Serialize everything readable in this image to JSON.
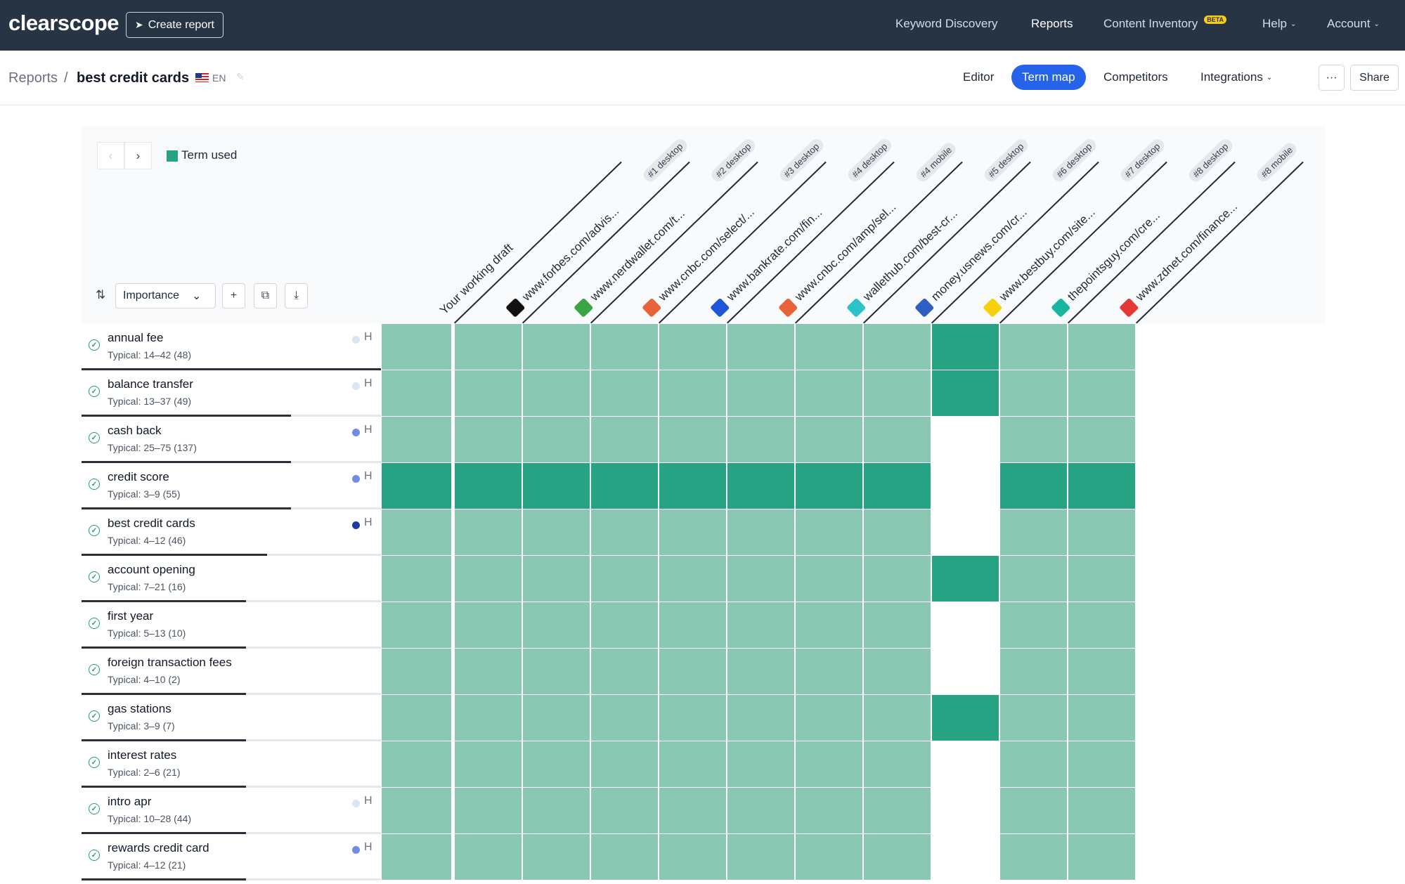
{
  "brand": "clearscope",
  "create_report": "Create report",
  "nav": [
    {
      "label": "Keyword Discovery",
      "active": false
    },
    {
      "label": "Reports",
      "active": true
    },
    {
      "label": "Content Inventory",
      "active": false,
      "badge": "BETA"
    },
    {
      "label": "Help",
      "active": false,
      "dropdown": true
    },
    {
      "label": "Account",
      "active": false,
      "dropdown": true
    }
  ],
  "breadcrumb": {
    "root": "Reports",
    "separator": "/",
    "title": "best credit cards",
    "lang": "EN"
  },
  "tabs": [
    {
      "label": "Editor",
      "active": false
    },
    {
      "label": "Term map",
      "active": true
    },
    {
      "label": "Competitors",
      "active": false
    },
    {
      "label": "Integrations",
      "active": false,
      "dropdown": true
    }
  ],
  "more_label": "···",
  "share_label": "Share",
  "legend": {
    "label": "Term used",
    "color": "#26a383"
  },
  "sort": {
    "label": "Importance"
  },
  "columns": [
    {
      "label": "Your working draft",
      "badge": "",
      "icon": "none"
    },
    {
      "label": "www.forbes.com/advis...",
      "badge": "#1 desktop",
      "icon": "forbes-icon",
      "color": "#111111"
    },
    {
      "label": "www.nerdwallet.com/t...",
      "badge": "#2 desktop",
      "icon": "nerdwallet-icon",
      "color": "#3aa545"
    },
    {
      "label": "www.cnbc.com/select/...",
      "badge": "#3 desktop",
      "icon": "cnbc-icon",
      "color": "#e8633a"
    },
    {
      "label": "www.bankrate.com/fin...",
      "badge": "#4 desktop",
      "icon": "bankrate-icon",
      "color": "#1f56d8"
    },
    {
      "label": "www.cnbc.com/amp/sel...",
      "badge": "#4 mobile",
      "icon": "cnbc-icon",
      "color": "#e8633a"
    },
    {
      "label": "wallethub.com/best-cr...",
      "badge": "#5 desktop",
      "icon": "wallethub-icon",
      "color": "#2cc3c8"
    },
    {
      "label": "money.usnews.com/cr...",
      "badge": "#6 desktop",
      "icon": "usnews-icon",
      "color": "#2f5fc6"
    },
    {
      "label": "www.bestbuy.com/site...",
      "badge": "#7 desktop",
      "icon": "bestbuy-icon",
      "color": "#f5d10c"
    },
    {
      "label": "thepointsguy.com/cre...",
      "badge": "#8 desktop",
      "icon": "thepointsguy-icon",
      "color": "#16b7a0"
    },
    {
      "label": "www.zdnet.com/finance...",
      "badge": "#8 mobile",
      "icon": "zdnet-icon",
      "color": "#e53935"
    }
  ],
  "terms": [
    {
      "name": "annual fee",
      "typical": "Typical: 14–42 (48)",
      "dot": "#dbe4f3",
      "h": "H",
      "bar": 1.0,
      "cells": [
        "lite",
        "lite",
        "lite",
        "lite",
        "lite",
        "lite",
        "lite",
        "lite",
        "dark",
        "lite",
        "lite"
      ]
    },
    {
      "name": "balance transfer",
      "typical": "Typical: 13–37 (49)",
      "dot": "#dbe4f3",
      "h": "H",
      "bar": 0.7,
      "cells": [
        "lite",
        "lite",
        "lite",
        "lite",
        "lite",
        "lite",
        "lite",
        "lite",
        "dark",
        "lite",
        "lite"
      ]
    },
    {
      "name": "cash back",
      "typical": "Typical: 25–75 (137)",
      "dot": "#6c8fe0",
      "h": "H",
      "bar": 0.7,
      "cells": [
        "lite",
        "lite",
        "lite",
        "lite",
        "lite",
        "lite",
        "lite",
        "lite",
        "empty",
        "lite",
        "lite"
      ]
    },
    {
      "name": "credit score",
      "typical": "Typical: 3–9 (55)",
      "dot": "#6c8fe0",
      "h": "H",
      "bar": 0.7,
      "cells": [
        "dark",
        "dark",
        "dark",
        "dark",
        "dark",
        "dark",
        "dark",
        "dark",
        "empty",
        "dark",
        "dark"
      ]
    },
    {
      "name": "best credit cards",
      "typical": "Typical: 4–12 (46)",
      "dot": "#1e3a9f",
      "h": "H",
      "bar": 0.62,
      "cells": [
        "lite",
        "lite",
        "lite",
        "lite",
        "lite",
        "lite",
        "lite",
        "lite",
        "empty",
        "lite",
        "lite"
      ]
    },
    {
      "name": "account opening",
      "typical": "Typical: 7–21 (16)",
      "dot": "",
      "h": "",
      "bar": 0.55,
      "cells": [
        "lite",
        "lite",
        "lite",
        "lite",
        "lite",
        "lite",
        "lite",
        "lite",
        "dark",
        "lite",
        "lite"
      ]
    },
    {
      "name": "first year",
      "typical": "Typical: 5–13 (10)",
      "dot": "",
      "h": "",
      "bar": 0.55,
      "cells": [
        "lite",
        "lite",
        "lite",
        "lite",
        "lite",
        "lite",
        "lite",
        "lite",
        "empty",
        "lite",
        "lite"
      ]
    },
    {
      "name": "foreign transaction fees",
      "typical": "Typical: 4–10 (2)",
      "dot": "",
      "h": "",
      "bar": 0.55,
      "cells": [
        "lite",
        "lite",
        "lite",
        "lite",
        "lite",
        "lite",
        "lite",
        "lite",
        "empty",
        "lite",
        "lite"
      ]
    },
    {
      "name": "gas stations",
      "typical": "Typical: 3–9 (7)",
      "dot": "",
      "h": "",
      "bar": 0.55,
      "cells": [
        "lite",
        "lite",
        "lite",
        "lite",
        "lite",
        "lite",
        "lite",
        "lite",
        "dark",
        "lite",
        "lite"
      ]
    },
    {
      "name": "interest rates",
      "typical": "Typical: 2–6 (21)",
      "dot": "",
      "h": "",
      "bar": 0.55,
      "cells": [
        "lite",
        "lite",
        "lite",
        "lite",
        "lite",
        "lite",
        "lite",
        "lite",
        "empty",
        "lite",
        "lite"
      ]
    },
    {
      "name": "intro apr",
      "typical": "Typical: 10–28 (44)",
      "dot": "#dbe4f3",
      "h": "H",
      "bar": 0.55,
      "cells": [
        "lite",
        "lite",
        "lite",
        "lite",
        "lite",
        "lite",
        "lite",
        "lite",
        "empty",
        "lite",
        "lite"
      ]
    },
    {
      "name": "rewards credit card",
      "typical": "Typical: 4–12 (21)",
      "dot": "#6c8fe0",
      "h": "H",
      "bar": 0.55,
      "cells": [
        "lite",
        "lite",
        "lite",
        "lite",
        "lite",
        "lite",
        "lite",
        "lite",
        "empty",
        "lite",
        "lite"
      ]
    }
  ]
}
